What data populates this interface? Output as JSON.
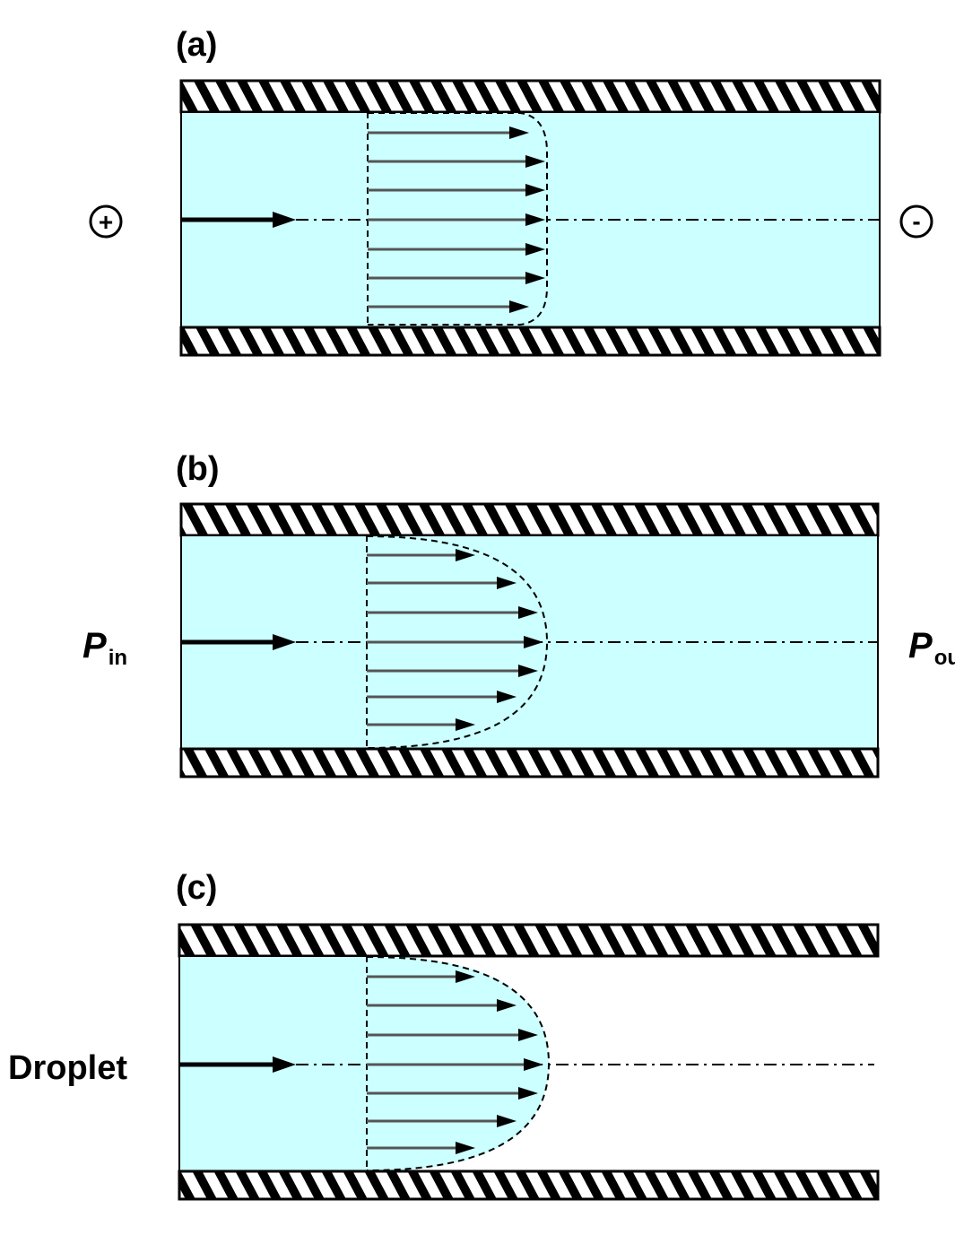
{
  "panels": [
    {
      "label": "(a)",
      "flow_profile": "plug",
      "left": {
        "symbol": "+"
      },
      "right": {
        "symbol": "-"
      },
      "right_channel_fill": true
    },
    {
      "label": "(b)",
      "flow_profile": "parabolic",
      "left": {
        "main": "P",
        "sub": "in"
      },
      "right": {
        "main": "P",
        "sub": "ou"
      },
      "right_channel_fill": true
    },
    {
      "label": "(c)",
      "flow_profile": "parabolic",
      "left": {
        "text": "Droplet"
      },
      "right_channel_fill": false
    }
  ],
  "colors": {
    "fluid": "#ccffff",
    "wall_fill": "#ffffff",
    "stroke": "#000000",
    "velocity_arrow": "#555555"
  }
}
